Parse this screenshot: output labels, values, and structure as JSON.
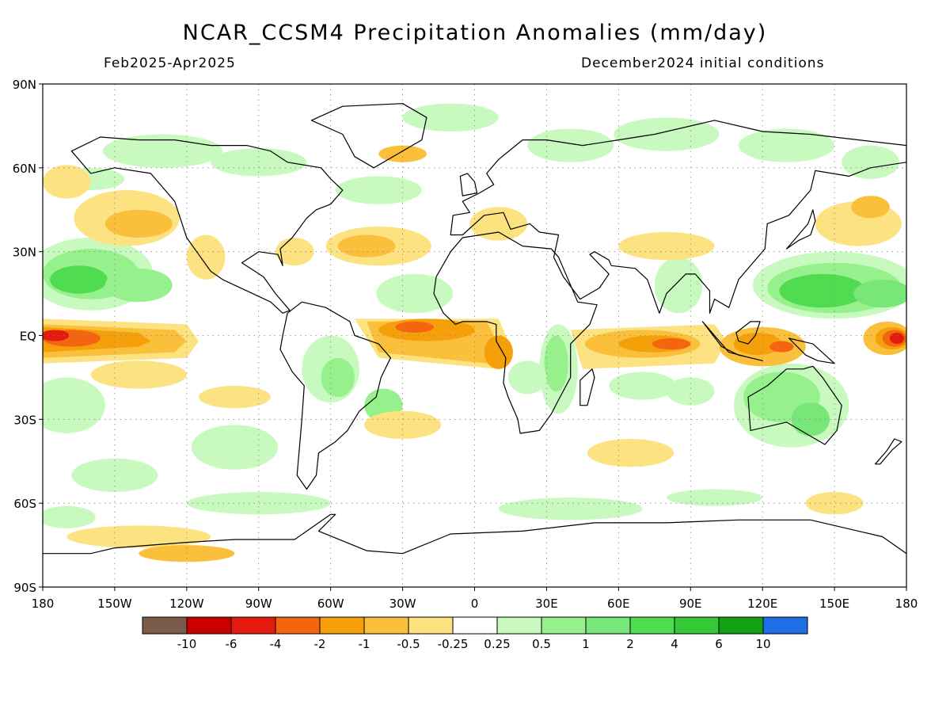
{
  "title": "NCAR_CCSM4 Precipitation Anomalies (mm/day)",
  "subtitle_left": "Feb2025-Apr2025",
  "subtitle_right": "December2024 initial conditions",
  "map": {
    "projection": "cylindrical equidistant",
    "lon_range": [
      -180,
      180
    ],
    "lat_range": [
      -90,
      90
    ],
    "lat_labels": [
      {
        "lat": 90,
        "text": "90N"
      },
      {
        "lat": 60,
        "text": "60N"
      },
      {
        "lat": 30,
        "text": "30N"
      },
      {
        "lat": 0,
        "text": "EQ"
      },
      {
        "lat": -30,
        "text": "30S"
      },
      {
        "lat": -60,
        "text": "60S"
      },
      {
        "lat": -90,
        "text": "90S"
      }
    ],
    "lon_labels": [
      {
        "lon": -180,
        "text": "180"
      },
      {
        "lon": -150,
        "text": "150W"
      },
      {
        "lon": -120,
        "text": "120W"
      },
      {
        "lon": -90,
        "text": "90W"
      },
      {
        "lon": -60,
        "text": "60W"
      },
      {
        "lon": -30,
        "text": "30W"
      },
      {
        "lon": 0,
        "text": "0"
      },
      {
        "lon": 30,
        "text": "30E"
      },
      {
        "lon": 60,
        "text": "60E"
      },
      {
        "lon": 90,
        "text": "90E"
      },
      {
        "lon": 120,
        "text": "120E"
      },
      {
        "lon": 150,
        "text": "150E"
      },
      {
        "lon": 180,
        "text": "180"
      }
    ],
    "gridlines": "dotted",
    "anomaly_colors": {
      "very_dry": "#7a5a48",
      "strong_dry": "#c80000",
      "dry_6": "#e41a0f",
      "dry_4": "#f5640f",
      "dry_2": "#f5a00a",
      "dry_1": "#fac03c",
      "dry_05": "#fde282",
      "neutral": "#ffffff",
      "wet_025": "#c8fac0",
      "wet_05": "#96f08c",
      "wet_1": "#78e678",
      "wet_2": "#50dc50",
      "wet_4": "#37c837",
      "wet_6": "#14a014",
      "very_wet": "#1e6ee6"
    },
    "features": [
      {
        "name": "equatorial-pacific-dry-band",
        "level": "dry",
        "lon": [
          -180,
          -115
        ],
        "lat": [
          -8,
          6
        ]
      },
      {
        "name": "equatorial-atlantic-dry-band",
        "level": "dry",
        "lon": [
          -45,
          15
        ],
        "lat": [
          -10,
          6
        ]
      },
      {
        "name": "indian-ocean-dry-band",
        "level": "dry",
        "lon": [
          45,
          100
        ],
        "lat": [
          -8,
          2
        ]
      },
      {
        "name": "maritime-continent-dry",
        "level": "dry",
        "lon": [
          100,
          140
        ],
        "lat": [
          -12,
          2
        ]
      },
      {
        "name": "west-pacific-dry-core",
        "level": "strongly-dry",
        "lon": [
          160,
          180
        ],
        "lat": [
          -6,
          4
        ]
      },
      {
        "name": "tropical-north-pacific-wet",
        "level": "wet",
        "lon": [
          -180,
          -130
        ],
        "lat": [
          10,
          35
        ]
      },
      {
        "name": "western-pacific-wet",
        "level": "wet",
        "lon": [
          120,
          180
        ],
        "lat": [
          3,
          25
        ]
      },
      {
        "name": "australia-wet",
        "level": "wet",
        "lon": [
          112,
          155
        ],
        "lat": [
          -40,
          -10
        ]
      },
      {
        "name": "east-africa-wet",
        "level": "wet",
        "lon": [
          25,
          42
        ],
        "lat": [
          -25,
          0
        ]
      },
      {
        "name": "south-america-wet",
        "level": "wet",
        "lon": [
          -70,
          -45
        ],
        "lat": [
          -25,
          0
        ]
      },
      {
        "name": "north-atlantic-dry",
        "level": "dry",
        "lon": [
          -60,
          -20
        ],
        "lat": [
          25,
          40
        ]
      },
      {
        "name": "north-pacific-dry",
        "level": "dry",
        "lon": [
          -165,
          -120
        ],
        "lat": [
          30,
          55
        ]
      },
      {
        "name": "southern-ocean-dry",
        "level": "dry",
        "lon": [
          -150,
          -60
        ],
        "lat": [
          -70,
          -60
        ]
      }
    ]
  },
  "colorbar": {
    "colors": [
      "#7a5a48",
      "#c80000",
      "#e41a0f",
      "#f5640f",
      "#f5a00a",
      "#fac03c",
      "#fde282",
      "#ffffff",
      "#c8fac0",
      "#96f08c",
      "#78e678",
      "#50dc50",
      "#37c837",
      "#14a014",
      "#1e6ee6"
    ],
    "labels": [
      "-10",
      "-6",
      "-4",
      "-2",
      "-1",
      "-0.5",
      "-0.25",
      "0.25",
      "0.5",
      "1",
      "2",
      "4",
      "6",
      "10"
    ]
  }
}
